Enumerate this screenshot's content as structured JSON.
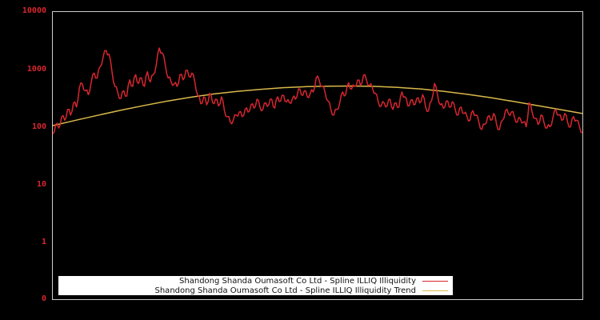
{
  "chart_data": {
    "type": "line",
    "title": "",
    "xlabel": "",
    "ylabel": "",
    "yscale": "log",
    "ylim": [
      0.1,
      10000
    ],
    "yticks": [
      "10000",
      "1000",
      "100",
      "10",
      "1",
      "0"
    ],
    "grid": false,
    "legend_position": "bottom-inside",
    "series": [
      {
        "name": "Shandong Shanda Oumasoft Co Ltd - Spline ILLIQ Illiquidity",
        "color": "#d8262e",
        "values": [
          75,
          110,
          95,
          150,
          130,
          200,
          160,
          260,
          220,
          480,
          550,
          420,
          360,
          600,
          850,
          700,
          1100,
          1600,
          2100,
          1800,
          900,
          500,
          380,
          310,
          420,
          340,
          650,
          500,
          800,
          560,
          700,
          500,
          900,
          600,
          800,
          1200,
          2300,
          1900,
          1200,
          700,
          600,
          550,
          500,
          800,
          650,
          950,
          750,
          850,
          600,
          350,
          250,
          330,
          240,
          380,
          260,
          300,
          230,
          330,
          190,
          150,
          120,
          130,
          160,
          180,
          150,
          200,
          180,
          240,
          210,
          300,
          220,
          200,
          260,
          240,
          300,
          210,
          330,
          280,
          350,
          270,
          260,
          310,
          300,
          450,
          360,
          420,
          330,
          380,
          400,
          700,
          650,
          500,
          400,
          280,
          200,
          160,
          200,
          260,
          400,
          360,
          580,
          450,
          500,
          640,
          520,
          780,
          650,
          520,
          480,
          380,
          270,
          230,
          260,
          230,
          300,
          200,
          260,
          220,
          400,
          330,
          230,
          290,
          240,
          310,
          260,
          360,
          220,
          190,
          280,
          560,
          360,
          240,
          210,
          280,
          220,
          270,
          200,
          160,
          220,
          170,
          150,
          130,
          190,
          160,
          120,
          90,
          110,
          150,
          130,
          170,
          110,
          90,
          130,
          190,
          170,
          180,
          150,
          120,
          140,
          120,
          100,
          260,
          180,
          140,
          110,
          160,
          120,
          95,
          100,
          140,
          200,
          160,
          130,
          170,
          120,
          100,
          150,
          130,
          100,
          80
        ]
      },
      {
        "name": "Shandong Shanda Oumasoft Co Ltd - Spline ILLIQ Illiquidity Trend",
        "color": "#d9b84a",
        "values": [
          105,
          130,
          160,
          195,
          235,
          280,
          325,
          370,
          410,
          445,
          475,
          495,
          505,
          508,
          500,
          480,
          450,
          410,
          365,
          320,
          275,
          235,
          200,
          170
        ]
      }
    ]
  },
  "axis": {
    "ticks": [
      {
        "label": "10000",
        "y": 14
      },
      {
        "label": "1000",
        "y": 87
      },
      {
        "label": "100",
        "y": 159
      },
      {
        "label": "10",
        "y": 231
      },
      {
        "label": "1",
        "y": 303
      },
      {
        "label": "0",
        "y": 374
      }
    ]
  },
  "legend": {
    "items": [
      {
        "label": "Shandong Shanda Oumasoft Co Ltd - Spline ILLIQ Illiquidity",
        "color": "#d8262e"
      },
      {
        "label": "Shandong Shanda Oumasoft Co Ltd - Spline ILLIQ Illiquidity Trend",
        "color": "#d9b84a"
      }
    ]
  },
  "colors": {
    "background": "#000000",
    "frame": "#cccccc",
    "tick_label": "#d8262e"
  }
}
